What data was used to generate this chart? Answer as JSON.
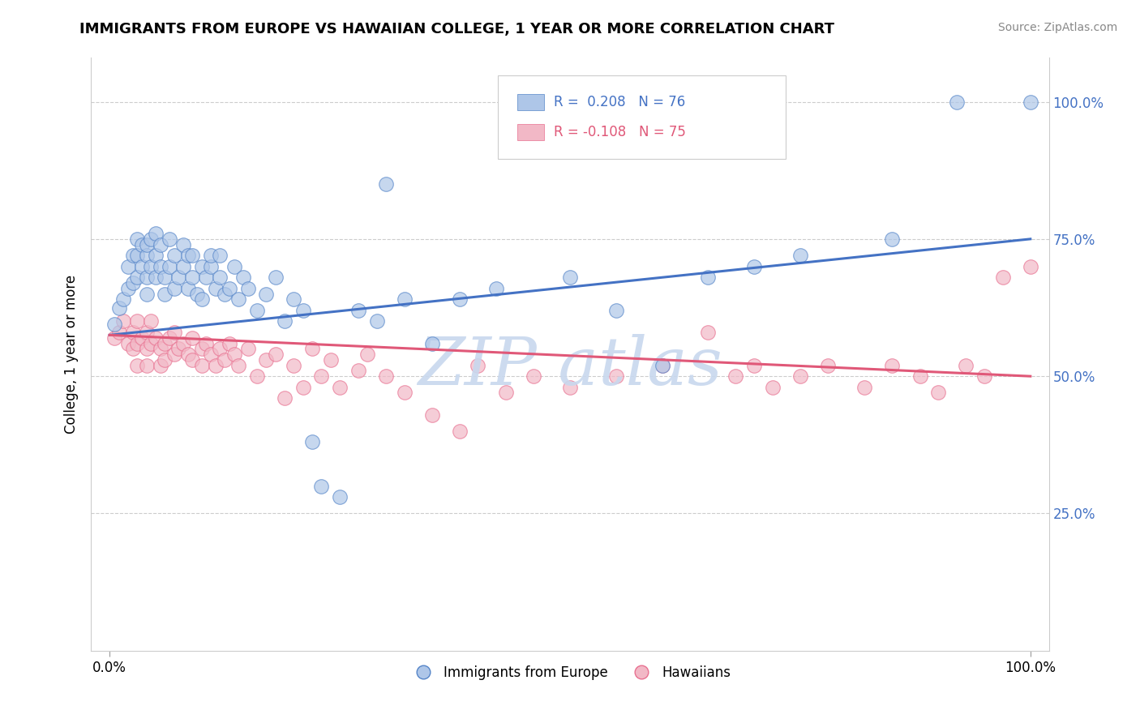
{
  "title": "IMMIGRANTS FROM EUROPE VS HAWAIIAN COLLEGE, 1 YEAR OR MORE CORRELATION CHART",
  "source_text": "Source: ZipAtlas.com",
  "xlabel": "",
  "ylabel": "College, 1 year or more",
  "xlim": [
    -0.02,
    1.02
  ],
  "ylim": [
    0.0,
    1.08
  ],
  "xtick_positions": [
    0.0,
    1.0
  ],
  "xtick_labels": [
    "0.0%",
    "100.0%"
  ],
  "ytick_positions": [
    0.25,
    0.5,
    0.75,
    1.0
  ],
  "ytick_labels_right": [
    "25.0%",
    "50.0%",
    "75.0%",
    "100.0%"
  ],
  "legend_label_blue": "R =  0.208   N = 76",
  "legend_label_pink": "R = -0.108   N = 75",
  "legend_r_blue": "0.208",
  "legend_r_pink": "-0.108",
  "legend_n_blue": "76",
  "legend_n_pink": "75",
  "legend_bottom_blue": "Immigrants from Europe",
  "legend_bottom_pink": "Hawaiians",
  "blue_line_x": [
    0.0,
    1.0
  ],
  "blue_line_y": [
    0.575,
    0.75
  ],
  "pink_line_x": [
    0.0,
    1.0
  ],
  "pink_line_y": [
    0.575,
    0.5
  ],
  "blue_fill_color": "#aec6e8",
  "blue_edge_color": "#5585c8",
  "pink_fill_color": "#f2b8c6",
  "pink_edge_color": "#e87090",
  "blue_line_color": "#4472c4",
  "pink_line_color": "#e05878",
  "right_axis_color": "#4472c4",
  "watermark_color": "#c8d8ee",
  "blue_scatter_x": [
    0.005,
    0.01,
    0.015,
    0.02,
    0.02,
    0.025,
    0.025,
    0.03,
    0.03,
    0.03,
    0.035,
    0.035,
    0.04,
    0.04,
    0.04,
    0.04,
    0.045,
    0.045,
    0.05,
    0.05,
    0.05,
    0.055,
    0.055,
    0.06,
    0.06,
    0.065,
    0.065,
    0.07,
    0.07,
    0.075,
    0.08,
    0.08,
    0.085,
    0.085,
    0.09,
    0.09,
    0.095,
    0.1,
    0.1,
    0.105,
    0.11,
    0.11,
    0.115,
    0.12,
    0.12,
    0.125,
    0.13,
    0.135,
    0.14,
    0.145,
    0.15,
    0.16,
    0.17,
    0.18,
    0.19,
    0.2,
    0.21,
    0.22,
    0.23,
    0.25,
    0.27,
    0.29,
    0.3,
    0.32,
    0.35,
    0.38,
    0.42,
    0.5,
    0.55,
    0.6,
    0.65,
    0.7,
    0.75,
    0.85,
    0.92,
    1.0
  ],
  "blue_scatter_y": [
    0.595,
    0.625,
    0.64,
    0.66,
    0.7,
    0.67,
    0.72,
    0.68,
    0.72,
    0.75,
    0.7,
    0.74,
    0.72,
    0.68,
    0.65,
    0.74,
    0.7,
    0.75,
    0.68,
    0.72,
    0.76,
    0.7,
    0.74,
    0.65,
    0.68,
    0.7,
    0.75,
    0.72,
    0.66,
    0.68,
    0.7,
    0.74,
    0.66,
    0.72,
    0.68,
    0.72,
    0.65,
    0.7,
    0.64,
    0.68,
    0.7,
    0.72,
    0.66,
    0.68,
    0.72,
    0.65,
    0.66,
    0.7,
    0.64,
    0.68,
    0.66,
    0.62,
    0.65,
    0.68,
    0.6,
    0.64,
    0.62,
    0.38,
    0.3,
    0.28,
    0.62,
    0.6,
    0.85,
    0.64,
    0.56,
    0.64,
    0.66,
    0.68,
    0.62,
    0.52,
    0.68,
    0.7,
    0.72,
    0.75,
    1.0,
    1.0
  ],
  "pink_scatter_x": [
    0.005,
    0.01,
    0.015,
    0.02,
    0.025,
    0.025,
    0.03,
    0.03,
    0.03,
    0.035,
    0.04,
    0.04,
    0.04,
    0.045,
    0.045,
    0.05,
    0.055,
    0.055,
    0.06,
    0.06,
    0.065,
    0.07,
    0.07,
    0.075,
    0.08,
    0.085,
    0.09,
    0.09,
    0.1,
    0.1,
    0.105,
    0.11,
    0.115,
    0.12,
    0.125,
    0.13,
    0.135,
    0.14,
    0.15,
    0.16,
    0.17,
    0.18,
    0.19,
    0.2,
    0.21,
    0.22,
    0.23,
    0.24,
    0.25,
    0.27,
    0.28,
    0.3,
    0.32,
    0.35,
    0.38,
    0.4,
    0.43,
    0.46,
    0.5,
    0.55,
    0.6,
    0.65,
    0.68,
    0.7,
    0.72,
    0.75,
    0.78,
    0.82,
    0.85,
    0.88,
    0.9,
    0.93,
    0.95,
    0.97,
    1.0
  ],
  "pink_scatter_y": [
    0.57,
    0.58,
    0.6,
    0.56,
    0.58,
    0.55,
    0.6,
    0.56,
    0.52,
    0.57,
    0.58,
    0.55,
    0.52,
    0.56,
    0.6,
    0.57,
    0.55,
    0.52,
    0.56,
    0.53,
    0.57,
    0.54,
    0.58,
    0.55,
    0.56,
    0.54,
    0.57,
    0.53,
    0.55,
    0.52,
    0.56,
    0.54,
    0.52,
    0.55,
    0.53,
    0.56,
    0.54,
    0.52,
    0.55,
    0.5,
    0.53,
    0.54,
    0.46,
    0.52,
    0.48,
    0.55,
    0.5,
    0.53,
    0.48,
    0.51,
    0.54,
    0.5,
    0.47,
    0.43,
    0.4,
    0.52,
    0.47,
    0.5,
    0.48,
    0.5,
    0.52,
    0.58,
    0.5,
    0.52,
    0.48,
    0.5,
    0.52,
    0.48,
    0.52,
    0.5,
    0.47,
    0.52,
    0.5,
    0.68,
    0.7
  ]
}
